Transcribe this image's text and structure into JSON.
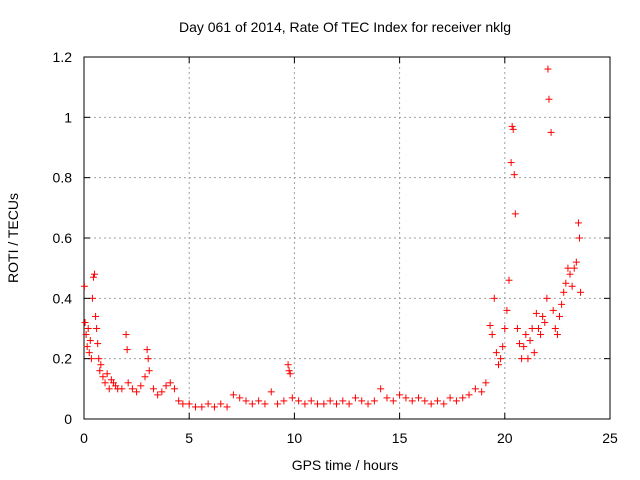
{
  "chart_data": {
    "type": "scatter",
    "title": "Day 061 of 2014, Rate Of TEC Index for receiver nklg",
    "xlabel": "GPS time / hours",
    "ylabel": "ROTI / TECUs",
    "xlim": [
      0,
      25
    ],
    "ylim": [
      0,
      1.2
    ],
    "x_ticks": [
      0,
      5,
      10,
      15,
      20,
      25
    ],
    "x_tick_labels": [
      "0",
      "5",
      "10",
      "15",
      "20",
      "25"
    ],
    "y_ticks": [
      0,
      0.2,
      0.4,
      0.6,
      0.8,
      1.0,
      1.2
    ],
    "y_tick_labels": [
      "0",
      "0.2",
      "0.4",
      "0.6",
      "0.8",
      "1",
      "1.2"
    ],
    "grid": true,
    "marker": "plus",
    "color": "#ff0000",
    "series": [
      {
        "x": [
          0.02,
          0.05,
          0.1,
          0.15,
          0.2,
          0.25,
          0.3,
          0.35,
          0.4,
          0.45,
          0.5,
          0.55,
          0.6,
          0.65,
          0.7,
          0.75,
          0.8,
          0.9,
          1.0,
          1.1,
          1.2,
          1.3,
          1.4,
          1.5,
          1.6,
          1.8,
          2.0,
          2.05,
          2.1,
          2.3,
          2.5,
          2.7,
          2.9,
          3.0,
          3.05,
          3.1,
          3.3,
          3.5,
          3.7,
          3.9,
          4.1,
          4.3,
          4.5,
          4.7,
          5.0,
          5.3,
          5.6,
          5.9,
          6.2,
          6.5,
          6.8,
          7.1,
          7.4,
          7.7,
          8.0,
          8.3,
          8.6,
          8.9,
          9.2,
          9.5,
          9.7,
          9.75,
          9.8,
          9.9,
          10.2,
          10.5,
          10.8,
          11.1,
          11.4,
          11.7,
          12.0,
          12.3,
          12.6,
          12.9,
          13.2,
          13.5,
          13.8,
          14.1,
          14.4,
          14.7,
          15.0,
          15.3,
          15.6,
          15.9,
          16.2,
          16.5,
          16.8,
          17.1,
          17.4,
          17.7,
          18.0,
          18.3,
          18.6,
          18.9,
          19.1,
          19.3,
          19.4,
          19.5,
          19.6,
          19.7,
          19.8,
          19.9,
          20.0,
          20.1,
          20.2,
          20.3,
          20.35,
          20.4,
          20.45,
          20.5,
          20.6,
          20.7,
          20.8,
          20.9,
          21.0,
          21.1,
          21.2,
          21.3,
          21.4,
          21.5,
          21.6,
          21.7,
          21.8,
          21.9,
          22.0,
          22.05,
          22.1,
          22.2,
          22.3,
          22.4,
          22.5,
          22.6,
          22.7,
          22.8,
          22.9,
          23.0,
          23.1,
          23.2,
          23.3,
          23.4,
          23.5,
          23.55,
          23.6
        ],
        "y": [
          0.44,
          0.32,
          0.28,
          0.24,
          0.3,
          0.22,
          0.26,
          0.2,
          0.4,
          0.47,
          0.48,
          0.34,
          0.3,
          0.25,
          0.2,
          0.16,
          0.18,
          0.14,
          0.12,
          0.15,
          0.1,
          0.13,
          0.12,
          0.11,
          0.1,
          0.1,
          0.28,
          0.23,
          0.12,
          0.1,
          0.09,
          0.11,
          0.14,
          0.23,
          0.2,
          0.16,
          0.1,
          0.08,
          0.09,
          0.11,
          0.12,
          0.1,
          0.06,
          0.05,
          0.05,
          0.04,
          0.04,
          0.05,
          0.04,
          0.05,
          0.04,
          0.08,
          0.07,
          0.06,
          0.05,
          0.06,
          0.05,
          0.09,
          0.05,
          0.06,
          0.18,
          0.16,
          0.15,
          0.07,
          0.06,
          0.05,
          0.06,
          0.05,
          0.05,
          0.06,
          0.05,
          0.06,
          0.05,
          0.07,
          0.06,
          0.05,
          0.06,
          0.1,
          0.07,
          0.06,
          0.08,
          0.07,
          0.06,
          0.07,
          0.06,
          0.05,
          0.06,
          0.05,
          0.07,
          0.06,
          0.07,
          0.08,
          0.1,
          0.09,
          0.12,
          0.31,
          0.28,
          0.4,
          0.22,
          0.18,
          0.2,
          0.24,
          0.3,
          0.36,
          0.46,
          0.85,
          0.97,
          0.96,
          0.81,
          0.68,
          0.3,
          0.25,
          0.2,
          0.24,
          0.28,
          0.2,
          0.26,
          0.3,
          0.22,
          0.35,
          0.3,
          0.28,
          0.34,
          0.32,
          0.4,
          1.16,
          1.06,
          0.95,
          0.36,
          0.3,
          0.28,
          0.34,
          0.38,
          0.42,
          0.45,
          0.5,
          0.48,
          0.44,
          0.5,
          0.52,
          0.65,
          0.6,
          0.42
        ]
      }
    ]
  }
}
